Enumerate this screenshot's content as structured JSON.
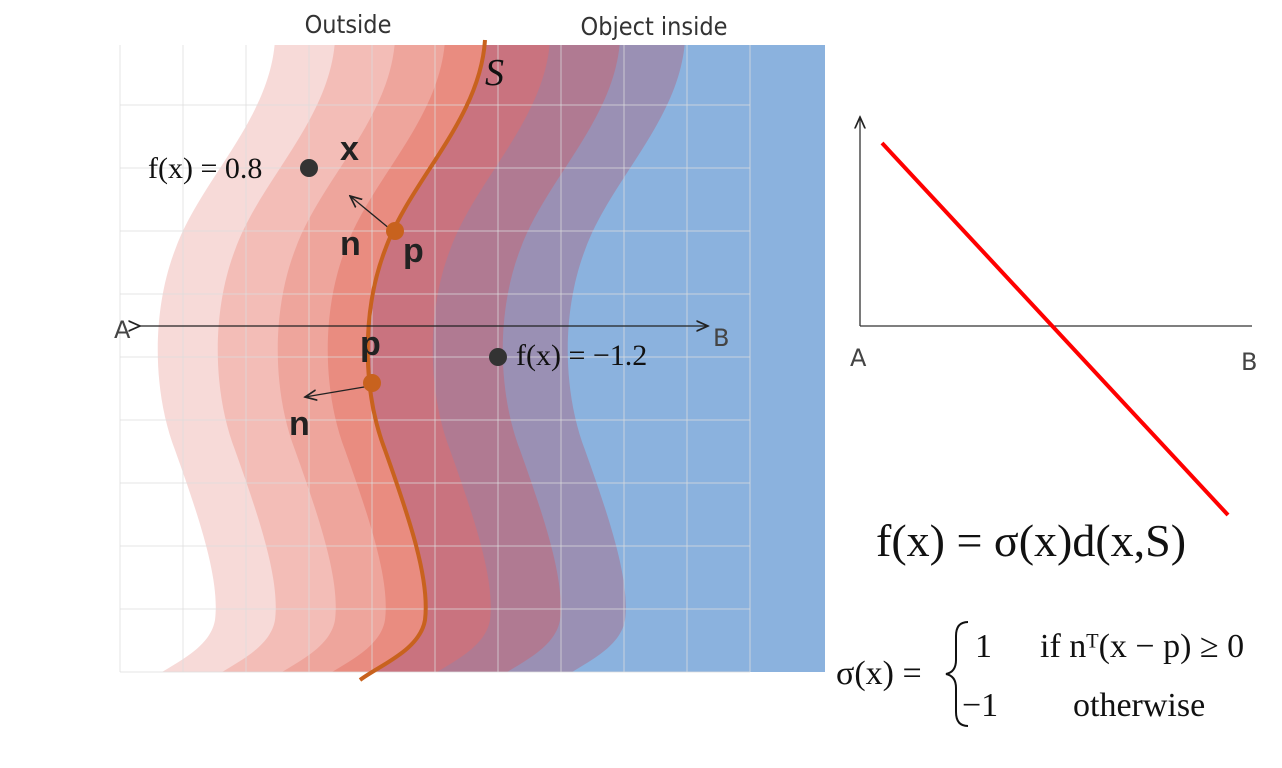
{
  "header": {
    "outside": "Outside",
    "inside": "Object inside"
  },
  "left": {
    "surface": "S",
    "point_label_1": "f(x) = 0.8",
    "x": "x",
    "n_1": "n",
    "p_1": "p",
    "a": "A",
    "b": "B",
    "p_2": "p",
    "point_label_2": "f(x) = −1.2",
    "n_2": "n"
  },
  "right": {
    "a": "A",
    "b": "B"
  },
  "formula": {
    "main": "f(x) = σ(x)d(x,S)",
    "sigma_lhs": "σ(x) =",
    "case_1_value": "1",
    "case_1_cond": "if nᵀ(x − p) ≥ 0",
    "case_2_value": "−1",
    "case_2_cond": "otherwise"
  }
}
